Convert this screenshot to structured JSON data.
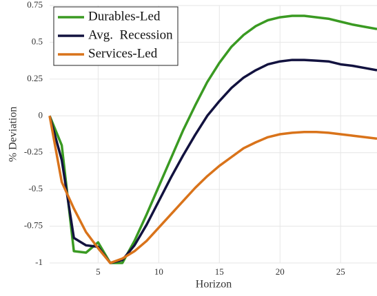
{
  "chart_data": {
    "type": "line",
    "x_label": "Horizon",
    "y_label": "% Deviation",
    "x": [
      1,
      2,
      3,
      4,
      5,
      6,
      7,
      8,
      9,
      10,
      11,
      12,
      13,
      14,
      15,
      16,
      17,
      18,
      19,
      20,
      21,
      22,
      23,
      24,
      25,
      26,
      27,
      28
    ],
    "series": [
      {
        "name": "Durables-Led",
        "color": "#3a9a22",
        "values": [
          0,
          -0.2,
          -0.92,
          -0.93,
          -0.86,
          -1.0,
          -1.0,
          -0.85,
          -0.67,
          -0.48,
          -0.29,
          -0.1,
          0.07,
          0.23,
          0.36,
          0.47,
          0.55,
          0.61,
          0.65,
          0.67,
          0.68,
          0.68,
          0.67,
          0.66,
          0.64,
          0.62,
          0.605,
          0.59
        ]
      },
      {
        "name": "Avg.  Recession",
        "color": "#12123f",
        "values": [
          0,
          -0.3,
          -0.83,
          -0.88,
          -0.89,
          -1.0,
          -0.98,
          -0.88,
          -0.74,
          -0.58,
          -0.42,
          -0.27,
          -0.13,
          0,
          0.1,
          0.19,
          0.26,
          0.31,
          0.35,
          0.37,
          0.38,
          0.38,
          0.375,
          0.37,
          0.35,
          0.34,
          0.325,
          0.31
        ]
      },
      {
        "name": "Services-Led",
        "color": "#d9731a",
        "values": [
          0,
          -0.45,
          -0.63,
          -0.79,
          -0.9,
          -1.0,
          -0.97,
          -0.92,
          -0.85,
          -0.76,
          -0.67,
          -0.58,
          -0.49,
          -0.41,
          -0.34,
          -0.28,
          -0.22,
          -0.18,
          -0.145,
          -0.125,
          -0.115,
          -0.11,
          -0.11,
          -0.115,
          -0.125,
          -0.135,
          -0.145,
          -0.155
        ]
      }
    ],
    "xlim": [
      1,
      28
    ],
    "xticks": [
      5,
      10,
      15,
      20,
      25
    ],
    "ylim": [
      -1,
      0.75
    ],
    "yticks": [
      -1,
      -0.75,
      -0.5,
      -0.25,
      0,
      0.25,
      0.5,
      0.75
    ],
    "grid": true,
    "legend": "upper-left"
  }
}
